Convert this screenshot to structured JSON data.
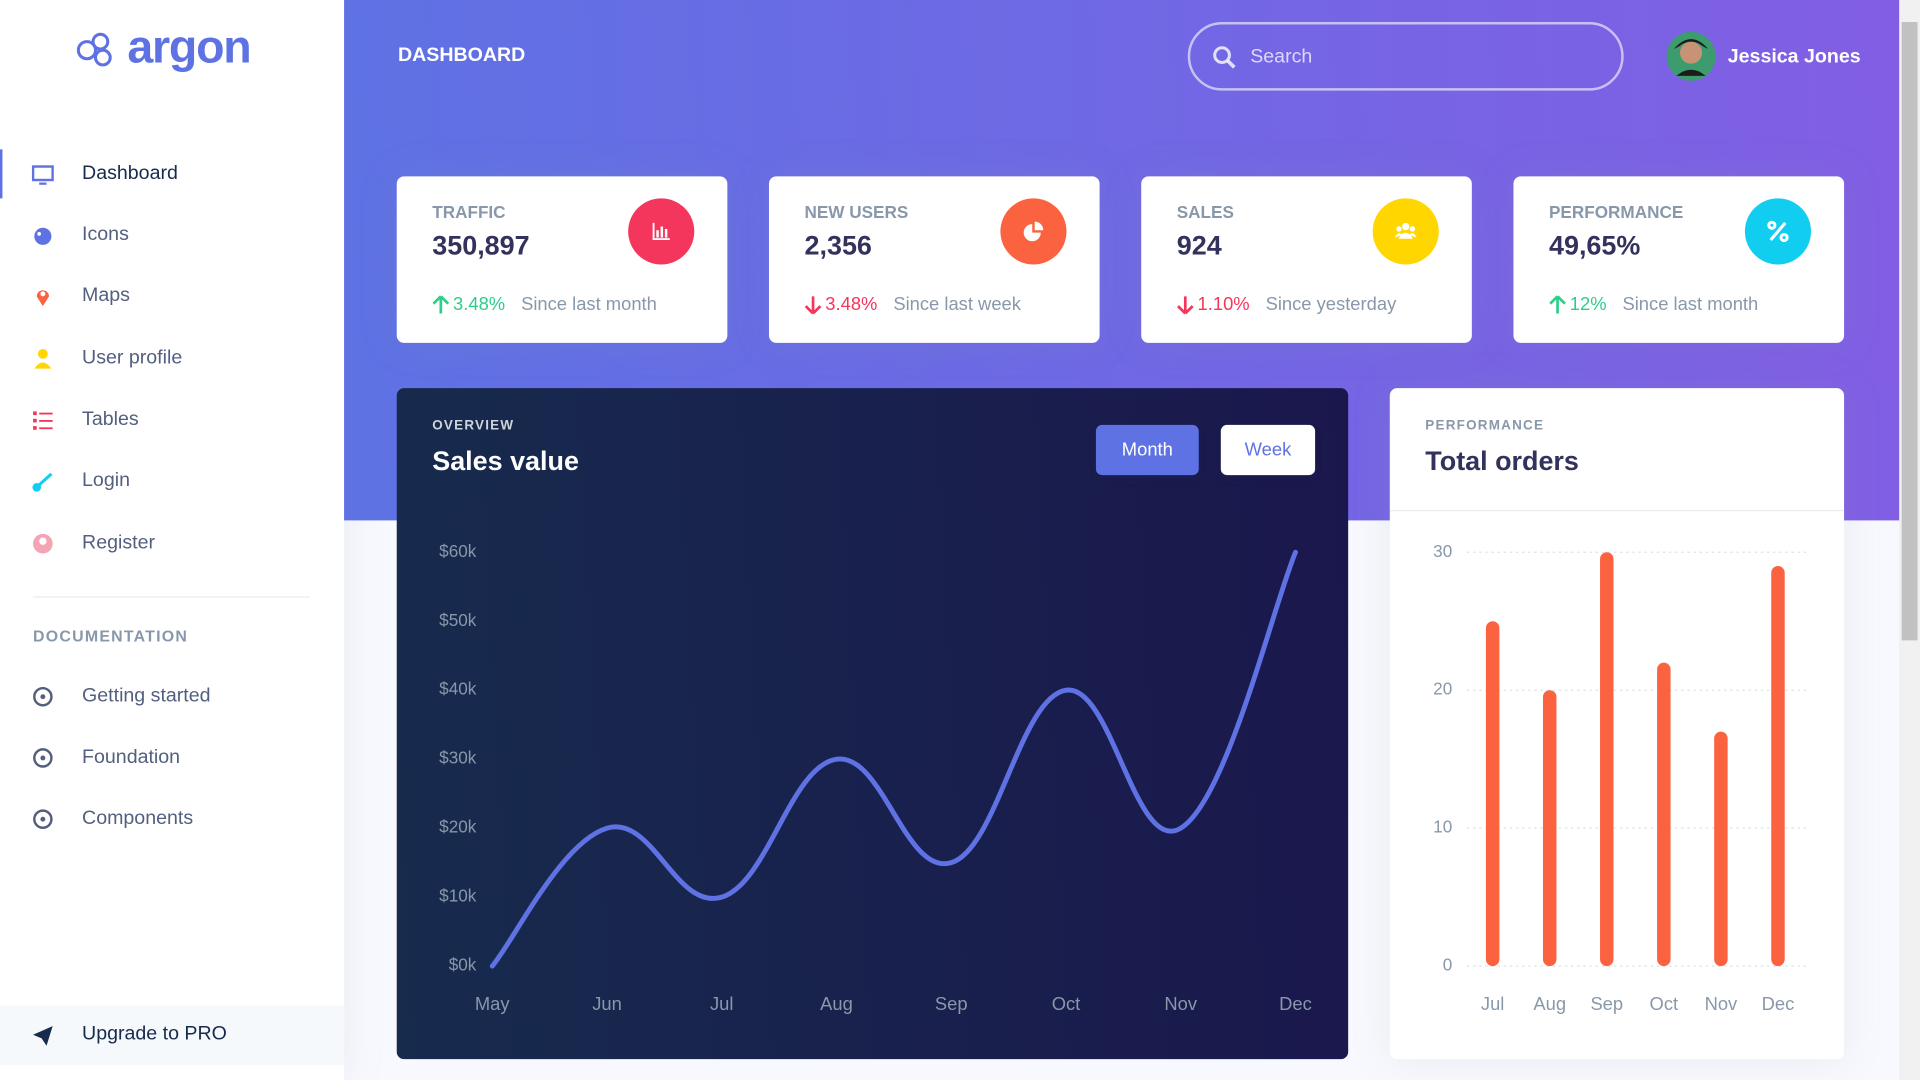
{
  "sidebar": {
    "brand": "argon",
    "nav": [
      "Dashboard",
      "Icons",
      "Maps",
      "User profile",
      "Tables",
      "Login",
      "Register"
    ],
    "docs_heading": "DOCUMENTATION",
    "docs": [
      "Getting started",
      "Foundation",
      "Components"
    ],
    "upgrade": "Upgrade to PRO"
  },
  "header": {
    "title": "DASHBOARD",
    "search_placeholder": "Search",
    "user": "Jessica Jones"
  },
  "stats": [
    {
      "label": "TRAFFIC",
      "value": "350,897",
      "change": "3.48%",
      "period": "Since last month"
    },
    {
      "label": "NEW USERS",
      "value": "2,356",
      "change": "3.48%",
      "period": "Since last week"
    },
    {
      "label": "SALES",
      "value": "924",
      "change": "1.10%",
      "period": "Since yesterday"
    },
    {
      "label": "PERFORMANCE",
      "value": "49,65%",
      "change": "12%",
      "period": "Since last month"
    }
  ],
  "chart_data": [
    {
      "type": "line",
      "pretitle": "OVERVIEW",
      "title": "Sales value",
      "buttons": [
        "Month",
        "Week"
      ],
      "categories": [
        "May",
        "Jun",
        "Jul",
        "Aug",
        "Sep",
        "Oct",
        "Nov",
        "Dec"
      ],
      "values": [
        0,
        20,
        10,
        30,
        15,
        40,
        20,
        60
      ],
      "color": "#5e72e4",
      "ylim": [
        0,
        60
      ],
      "yticks": [
        {
          "value": 0,
          "label": "$0k"
        },
        {
          "value": 10,
          "label": "$10k"
        },
        {
          "value": 20,
          "label": "$20k"
        },
        {
          "value": 30,
          "label": "$30k"
        },
        {
          "value": 40,
          "label": "$40k"
        },
        {
          "value": 50,
          "label": "$50k"
        },
        {
          "value": 60,
          "label": "$60k"
        }
      ],
      "grid": false
    },
    {
      "type": "bar",
      "pretitle": "PERFORMANCE",
      "title": "Total orders",
      "categories": [
        "Jul",
        "Aug",
        "Sep",
        "Oct",
        "Nov",
        "Dec"
      ],
      "values": [
        25,
        20,
        30,
        22,
        17,
        29
      ],
      "color": "#fb6340",
      "ylim": [
        0,
        30
      ],
      "yticks": [
        0,
        10,
        20,
        30
      ],
      "grid": true
    }
  ]
}
